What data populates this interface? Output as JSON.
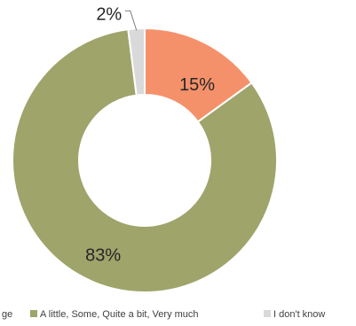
{
  "chart_data": {
    "type": "donut",
    "title": "",
    "slices": [
      {
        "label": "No change",
        "value": 15,
        "display": "15%",
        "color": "#F4916B"
      },
      {
        "label": "A little, Some, Quite a bit, Very much",
        "value": 83,
        "display": "83%",
        "color": "#9FA46B"
      },
      {
        "label": "I don't know",
        "value": 2,
        "display": "2%",
        "color": "#D9D9D9"
      }
    ],
    "legend": {
      "position": "bottom",
      "items": [
        {
          "text": "ge",
          "color": "#F4916B"
        },
        {
          "text": "A little, Some, Quite a bit, Very much",
          "color": "#9FA46B"
        },
        {
          "text": "I don't know",
          "color": "#D9D9D9"
        }
      ]
    }
  }
}
